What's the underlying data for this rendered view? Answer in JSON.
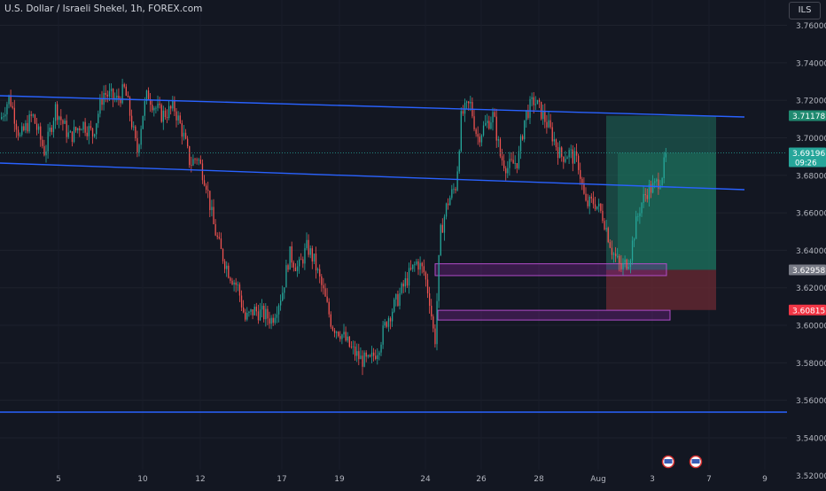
{
  "header": {
    "title": "U.S. Dollar / Israeli Shekel, 1h, FOREX.com",
    "currency": "ILS"
  },
  "colors": {
    "background": "#131722",
    "bull": "#26a69a",
    "bear": "#ef5350",
    "channel": "#2962ff",
    "target_zone": "#1f6e5c",
    "stop_zone": "#6b2a33",
    "demand_zone": "#9c27b0",
    "text": "#b2b5be"
  },
  "chart_data": {
    "type": "candlestick",
    "y_axis": {
      "ticks": [
        "3.76000",
        "3.74000",
        "3.72000",
        "3.70000",
        "3.68000",
        "3.66000",
        "3.64000",
        "3.62000",
        "3.60000",
        "3.58000",
        "3.56000",
        "3.54000",
        "3.52000"
      ],
      "range": [
        3.5135,
        3.7735
      ]
    },
    "x_axis": {
      "ticks": [
        "5",
        "10",
        "12",
        "17",
        "19",
        "24",
        "26",
        "28",
        "Aug",
        "3",
        "7",
        "9"
      ]
    },
    "price_labels": [
      {
        "value": "3.71178",
        "sub": "",
        "kind": "target"
      },
      {
        "value": "3.69196",
        "sub": "09:26",
        "kind": "current"
      },
      {
        "value": "3.62958",
        "sub": "",
        "kind": "entry"
      },
      {
        "value": "3.60815",
        "sub": "",
        "kind": "stop"
      }
    ],
    "trendlines": [
      {
        "name": "upper-channel",
        "start": [
          "4 Jul 08:00",
          3.7295
        ],
        "end": [
          "8 Aug 12:00",
          3.7185
        ]
      },
      {
        "name": "lower-channel",
        "start": [
          "4 Jul 08:00",
          3.6905
        ],
        "end": [
          "8 Aug 12:00",
          3.6755
        ]
      },
      {
        "name": "support-line",
        "start": [
          "4 Jul 08:00",
          3.5445
        ],
        "end": [
          "10 Aug 06:00",
          3.5445
        ]
      }
    ],
    "position": {
      "entry": 3.62958,
      "target": 3.71178,
      "stop": 3.60815,
      "current": 3.69196
    },
    "zones": [
      {
        "name": "demand-zone-upper",
        "top": 3.6328,
        "bottom": 3.6265
      },
      {
        "name": "demand-zone-lower",
        "top": 3.608,
        "bottom": 3.6028
      }
    ],
    "path": [
      [
        0,
        3.71
      ],
      [
        10,
        3.722
      ],
      [
        22,
        3.7
      ],
      [
        36,
        3.712
      ],
      [
        50,
        3.692
      ],
      [
        62,
        3.716
      ],
      [
        78,
        3.7
      ],
      [
        92,
        3.708
      ],
      [
        104,
        3.702
      ],
      [
        116,
        3.724
      ],
      [
        132,
        3.72
      ],
      [
        140,
        3.726
      ],
      [
        148,
        3.708
      ],
      [
        154,
        3.692
      ],
      [
        160,
        3.712
      ],
      [
        166,
        3.724
      ],
      [
        172,
        3.718
      ],
      [
        182,
        3.712
      ],
      [
        196,
        3.716
      ],
      [
        206,
        3.702
      ],
      [
        214,
        3.686
      ],
      [
        222,
        3.69
      ],
      [
        232,
        3.676
      ],
      [
        240,
        3.654
      ],
      [
        248,
        3.64
      ],
      [
        258,
        3.628
      ],
      [
        268,
        3.62
      ],
      [
        276,
        3.603
      ],
      [
        286,
        3.608
      ],
      [
        296,
        3.606
      ],
      [
        306,
        3.603
      ],
      [
        318,
        3.618
      ],
      [
        326,
        3.638
      ],
      [
        336,
        3.63
      ],
      [
        346,
        3.642
      ],
      [
        354,
        3.634
      ],
      [
        364,
        3.618
      ],
      [
        374,
        3.6
      ],
      [
        384,
        3.596
      ],
      [
        396,
        3.587
      ],
      [
        406,
        3.582
      ],
      [
        416,
        3.58
      ],
      [
        426,
        3.588
      ],
      [
        436,
        3.603
      ],
      [
        448,
        3.614
      ],
      [
        460,
        3.626
      ],
      [
        470,
        3.634
      ],
      [
        478,
        3.628
      ],
      [
        484,
        3.614
      ],
      [
        490,
        3.59
      ],
      [
        496,
        3.648
      ],
      [
        504,
        3.665
      ],
      [
        514,
        3.675
      ],
      [
        520,
        3.712
      ],
      [
        530,
        3.718
      ],
      [
        538,
        3.7
      ],
      [
        546,
        3.706
      ],
      [
        556,
        3.712
      ],
      [
        564,
        3.69
      ],
      [
        572,
        3.684
      ],
      [
        584,
        3.688
      ],
      [
        592,
        3.712
      ],
      [
        602,
        3.72
      ],
      [
        612,
        3.712
      ],
      [
        622,
        3.702
      ],
      [
        632,
        3.69
      ],
      [
        642,
        3.692
      ],
      [
        652,
        3.686
      ],
      [
        660,
        3.664
      ],
      [
        670,
        3.666
      ],
      [
        680,
        3.658
      ],
      [
        690,
        3.64
      ],
      [
        700,
        3.63
      ],
      [
        710,
        3.636
      ],
      [
        716,
        3.652
      ],
      [
        722,
        3.664
      ],
      [
        730,
        3.672
      ],
      [
        738,
        3.674
      ],
      [
        746,
        3.68
      ],
      [
        752,
        3.692
      ]
    ]
  }
}
